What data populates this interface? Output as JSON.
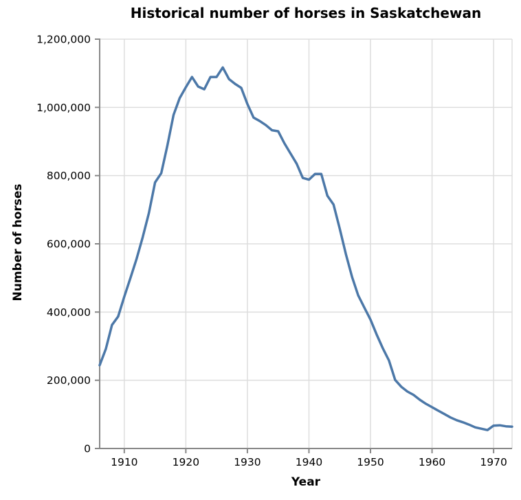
{
  "chart_data": {
    "type": "line",
    "title": "Historical number of horses in Saskatchewan",
    "xlabel": "Year",
    "ylabel": "Number of horses",
    "xlim": [
      1906,
      1973
    ],
    "ylim": [
      0,
      1200000
    ],
    "grid": true,
    "legend": false,
    "line_color": "#4c78a8",
    "grid_color": "#dddddd",
    "axis_color": "#888888",
    "xticks": [
      1910,
      1920,
      1930,
      1940,
      1950,
      1960,
      1970
    ],
    "xtick_labels": [
      "1910",
      "1920",
      "1930",
      "1940",
      "1950",
      "1960",
      "1970"
    ],
    "yticks": [
      0,
      200000,
      400000,
      600000,
      800000,
      1000000,
      1200000
    ],
    "ytick_labels": [
      "0",
      "200,000",
      "400,000",
      "600,000",
      "800,000",
      "1,000,000",
      "1,200,000"
    ],
    "x": [
      1906,
      1907,
      1908,
      1909,
      1910,
      1911,
      1912,
      1913,
      1914,
      1915,
      1916,
      1917,
      1918,
      1919,
      1920,
      1921,
      1922,
      1923,
      1924,
      1925,
      1926,
      1927,
      1928,
      1929,
      1930,
      1931,
      1932,
      1933,
      1934,
      1935,
      1936,
      1937,
      1938,
      1939,
      1940,
      1941,
      1942,
      1943,
      1944,
      1945,
      1946,
      1947,
      1948,
      1949,
      1950,
      1951,
      1952,
      1953,
      1954,
      1955,
      1956,
      1957,
      1958,
      1959,
      1960,
      1961,
      1962,
      1963,
      1964,
      1965,
      1966,
      1967,
      1968,
      1969,
      1970,
      1971,
      1972,
      1973
    ],
    "values": [
      244000,
      292000,
      362000,
      387000,
      445000,
      500000,
      556000,
      620000,
      690000,
      780000,
      807000,
      888000,
      978000,
      1027000,
      1059000,
      1089000,
      1061000,
      1053000,
      1089000,
      1089000,
      1117000,
      1083000,
      1069000,
      1057000,
      1010000,
      970000,
      960000,
      948000,
      933000,
      930000,
      895000,
      865000,
      835000,
      793000,
      788000,
      805000,
      805000,
      741000,
      715000,
      644000,
      570000,
      503000,
      449000,
      413000,
      378000,
      334000,
      294000,
      258000,
      201000,
      181000,
      167000,
      157000,
      143000,
      131000,
      121000,
      111000,
      101000,
      91000,
      83000,
      77000,
      70000,
      62000,
      58000,
      54000,
      67000,
      68000,
      65000,
      64000
    ]
  }
}
